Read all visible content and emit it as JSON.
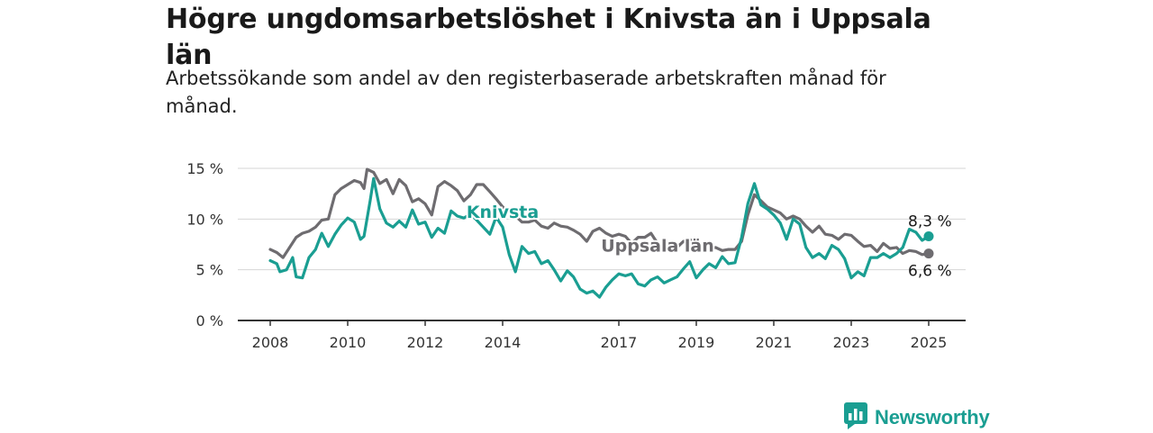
{
  "header": {
    "title": "Högre ungdomsarbetslöshet i Knivsta än i Uppsala län",
    "subtitle": "Arbetssökande som andel av den registerbaserade arbetskraften månad för månad."
  },
  "brand": {
    "name": "Newsworthy",
    "icon": "newsworthy-logo-icon",
    "color": "#1a9e92"
  },
  "chart_data": {
    "type": "line",
    "ylim": [
      0,
      15
    ],
    "xlim": [
      2007.4,
      2025.8
    ],
    "y_ticks": [
      {
        "value": 0,
        "label": "0 %"
      },
      {
        "value": 5,
        "label": "5 %"
      },
      {
        "value": 10,
        "label": "10 %"
      },
      {
        "value": 15,
        "label": "15 %"
      }
    ],
    "x_ticks": [
      {
        "value": 2008,
        "label": "2008"
      },
      {
        "value": 2010,
        "label": "2010"
      },
      {
        "value": 2012,
        "label": "2012"
      },
      {
        "value": 2014,
        "label": "2014"
      },
      {
        "value": 2017,
        "label": "2017"
      },
      {
        "value": 2019,
        "label": "2019"
      },
      {
        "value": 2021,
        "label": "2021"
      },
      {
        "value": 2023,
        "label": "2023"
      },
      {
        "value": 2025,
        "label": "2025"
      }
    ],
    "grid": "horizontal",
    "series": [
      {
        "name": "Uppsala län",
        "color": "#6e6c70",
        "end_label": "6,6 %",
        "points": [
          [
            2008.0,
            7.0
          ],
          [
            2008.17,
            6.7
          ],
          [
            2008.33,
            6.2
          ],
          [
            2008.5,
            7.2
          ],
          [
            2008.67,
            8.2
          ],
          [
            2008.83,
            8.6
          ],
          [
            2009.0,
            8.8
          ],
          [
            2009.17,
            9.2
          ],
          [
            2009.33,
            9.9
          ],
          [
            2009.5,
            10.0
          ],
          [
            2009.67,
            12.4
          ],
          [
            2009.83,
            13.0
          ],
          [
            2010.0,
            13.4
          ],
          [
            2010.17,
            13.8
          ],
          [
            2010.33,
            13.6
          ],
          [
            2010.42,
            13.0
          ],
          [
            2010.5,
            14.9
          ],
          [
            2010.67,
            14.6
          ],
          [
            2010.83,
            13.5
          ],
          [
            2011.0,
            13.9
          ],
          [
            2011.17,
            12.5
          ],
          [
            2011.33,
            13.9
          ],
          [
            2011.5,
            13.3
          ],
          [
            2011.67,
            11.7
          ],
          [
            2011.83,
            12.0
          ],
          [
            2012.0,
            11.5
          ],
          [
            2012.17,
            10.4
          ],
          [
            2012.33,
            13.2
          ],
          [
            2012.5,
            13.7
          ],
          [
            2012.67,
            13.3
          ],
          [
            2012.83,
            12.8
          ],
          [
            2013.0,
            11.8
          ],
          [
            2013.17,
            12.4
          ],
          [
            2013.33,
            13.4
          ],
          [
            2013.5,
            13.4
          ],
          [
            2013.67,
            12.7
          ],
          [
            2013.83,
            12.0
          ],
          [
            2014.0,
            11.2
          ],
          [
            2014.17,
            10.8
          ],
          [
            2014.33,
            10.3
          ],
          [
            2014.5,
            9.7
          ],
          [
            2014.67,
            9.7
          ],
          [
            2014.83,
            9.9
          ],
          [
            2015.0,
            9.3
          ],
          [
            2015.17,
            9.1
          ],
          [
            2015.33,
            9.6
          ],
          [
            2015.5,
            9.3
          ],
          [
            2015.67,
            9.2
          ],
          [
            2015.83,
            8.9
          ],
          [
            2016.0,
            8.5
          ],
          [
            2016.17,
            7.8
          ],
          [
            2016.33,
            8.8
          ],
          [
            2016.5,
            9.1
          ],
          [
            2016.67,
            8.6
          ],
          [
            2016.83,
            8.3
          ],
          [
            2017.0,
            8.5
          ],
          [
            2017.17,
            8.3
          ],
          [
            2017.33,
            7.6
          ],
          [
            2017.5,
            8.2
          ],
          [
            2017.67,
            8.2
          ],
          [
            2017.83,
            8.6
          ],
          [
            2018.0,
            7.6
          ],
          [
            2018.17,
            7.2
          ],
          [
            2018.33,
            7.5
          ],
          [
            2018.5,
            7.2
          ],
          [
            2018.67,
            7.8
          ],
          [
            2018.83,
            8.0
          ],
          [
            2019.0,
            7.5
          ],
          [
            2019.17,
            6.8
          ],
          [
            2019.33,
            7.1
          ],
          [
            2019.5,
            7.2
          ],
          [
            2019.67,
            6.9
          ],
          [
            2019.83,
            7.0
          ],
          [
            2020.0,
            7.0
          ],
          [
            2020.17,
            7.8
          ],
          [
            2020.33,
            10.4
          ],
          [
            2020.5,
            12.4
          ],
          [
            2020.67,
            11.8
          ],
          [
            2020.83,
            11.2
          ],
          [
            2021.0,
            10.9
          ],
          [
            2021.17,
            10.6
          ],
          [
            2021.33,
            10.0
          ],
          [
            2021.5,
            10.3
          ],
          [
            2021.67,
            10.0
          ],
          [
            2021.83,
            9.3
          ],
          [
            2022.0,
            8.7
          ],
          [
            2022.17,
            9.3
          ],
          [
            2022.33,
            8.5
          ],
          [
            2022.5,
            8.4
          ],
          [
            2022.67,
            8.0
          ],
          [
            2022.83,
            8.5
          ],
          [
            2023.0,
            8.4
          ],
          [
            2023.17,
            7.8
          ],
          [
            2023.33,
            7.3
          ],
          [
            2023.5,
            7.4
          ],
          [
            2023.67,
            6.8
          ],
          [
            2023.83,
            7.6
          ],
          [
            2024.0,
            7.1
          ],
          [
            2024.17,
            7.2
          ],
          [
            2024.33,
            6.6
          ],
          [
            2024.5,
            6.9
          ],
          [
            2024.67,
            6.8
          ],
          [
            2024.83,
            6.5
          ],
          [
            2025.0,
            6.6
          ]
        ]
      },
      {
        "name": "Knivsta",
        "color": "#1a9e92",
        "end_label": "8,3 %",
        "points": [
          [
            2008.0,
            5.9
          ],
          [
            2008.17,
            5.6
          ],
          [
            2008.25,
            4.8
          ],
          [
            2008.42,
            5.0
          ],
          [
            2008.58,
            6.2
          ],
          [
            2008.67,
            4.3
          ],
          [
            2008.83,
            4.2
          ],
          [
            2009.0,
            6.2
          ],
          [
            2009.17,
            7.0
          ],
          [
            2009.33,
            8.6
          ],
          [
            2009.5,
            7.3
          ],
          [
            2009.67,
            8.5
          ],
          [
            2009.83,
            9.4
          ],
          [
            2010.0,
            10.1
          ],
          [
            2010.17,
            9.7
          ],
          [
            2010.33,
            8.0
          ],
          [
            2010.42,
            8.3
          ],
          [
            2010.58,
            11.8
          ],
          [
            2010.67,
            14.0
          ],
          [
            2010.83,
            11.0
          ],
          [
            2011.0,
            9.6
          ],
          [
            2011.17,
            9.2
          ],
          [
            2011.33,
            9.8
          ],
          [
            2011.5,
            9.2
          ],
          [
            2011.67,
            10.9
          ],
          [
            2011.83,
            9.5
          ],
          [
            2012.0,
            9.7
          ],
          [
            2012.17,
            8.2
          ],
          [
            2012.33,
            9.1
          ],
          [
            2012.5,
            8.6
          ],
          [
            2012.67,
            10.8
          ],
          [
            2012.83,
            10.3
          ],
          [
            2013.0,
            10.1
          ],
          [
            2013.17,
            10.5
          ],
          [
            2013.33,
            9.9
          ],
          [
            2013.5,
            9.2
          ],
          [
            2013.67,
            8.5
          ],
          [
            2013.83,
            10.2
          ],
          [
            2014.0,
            9.2
          ],
          [
            2014.17,
            6.5
          ],
          [
            2014.33,
            4.8
          ],
          [
            2014.5,
            7.3
          ],
          [
            2014.67,
            6.6
          ],
          [
            2014.83,
            6.8
          ],
          [
            2015.0,
            5.6
          ],
          [
            2015.17,
            5.9
          ],
          [
            2015.33,
            5.0
          ],
          [
            2015.5,
            3.9
          ],
          [
            2015.67,
            4.9
          ],
          [
            2015.83,
            4.3
          ],
          [
            2016.0,
            3.1
          ],
          [
            2016.17,
            2.7
          ],
          [
            2016.33,
            2.9
          ],
          [
            2016.5,
            2.3
          ],
          [
            2016.67,
            3.3
          ],
          [
            2016.83,
            4.0
          ],
          [
            2017.0,
            4.6
          ],
          [
            2017.17,
            4.4
          ],
          [
            2017.33,
            4.6
          ],
          [
            2017.5,
            3.6
          ],
          [
            2017.67,
            3.4
          ],
          [
            2017.83,
            4.0
          ],
          [
            2018.0,
            4.3
          ],
          [
            2018.17,
            3.7
          ],
          [
            2018.33,
            4.0
          ],
          [
            2018.5,
            4.3
          ],
          [
            2018.67,
            5.1
          ],
          [
            2018.83,
            5.8
          ],
          [
            2019.0,
            4.2
          ],
          [
            2019.17,
            5.0
          ],
          [
            2019.33,
            5.6
          ],
          [
            2019.5,
            5.2
          ],
          [
            2019.67,
            6.3
          ],
          [
            2019.83,
            5.6
          ],
          [
            2020.0,
            5.7
          ],
          [
            2020.17,
            8.2
          ],
          [
            2020.33,
            11.5
          ],
          [
            2020.5,
            13.5
          ],
          [
            2020.67,
            11.4
          ],
          [
            2020.83,
            11.0
          ],
          [
            2021.0,
            10.4
          ],
          [
            2021.17,
            9.6
          ],
          [
            2021.33,
            8.0
          ],
          [
            2021.5,
            10.0
          ],
          [
            2021.67,
            9.5
          ],
          [
            2021.83,
            7.2
          ],
          [
            2022.0,
            6.2
          ],
          [
            2022.17,
            6.6
          ],
          [
            2022.33,
            6.1
          ],
          [
            2022.5,
            7.4
          ],
          [
            2022.67,
            7.0
          ],
          [
            2022.83,
            6.1
          ],
          [
            2023.0,
            4.2
          ],
          [
            2023.17,
            4.8
          ],
          [
            2023.33,
            4.4
          ],
          [
            2023.5,
            6.2
          ],
          [
            2023.67,
            6.2
          ],
          [
            2023.83,
            6.6
          ],
          [
            2024.0,
            6.2
          ],
          [
            2024.17,
            6.6
          ],
          [
            2024.33,
            7.2
          ],
          [
            2024.5,
            9.0
          ],
          [
            2024.67,
            8.7
          ],
          [
            2024.83,
            7.9
          ],
          [
            2025.0,
            8.3
          ]
        ]
      }
    ],
    "series_labels": [
      {
        "series": "Knivsta",
        "text": "Knivsta",
        "x": 2014.0,
        "y": 10.1
      },
      {
        "series": "Uppsala län",
        "text": "Uppsala län",
        "x": 2018.0,
        "y": 6.8
      }
    ]
  }
}
